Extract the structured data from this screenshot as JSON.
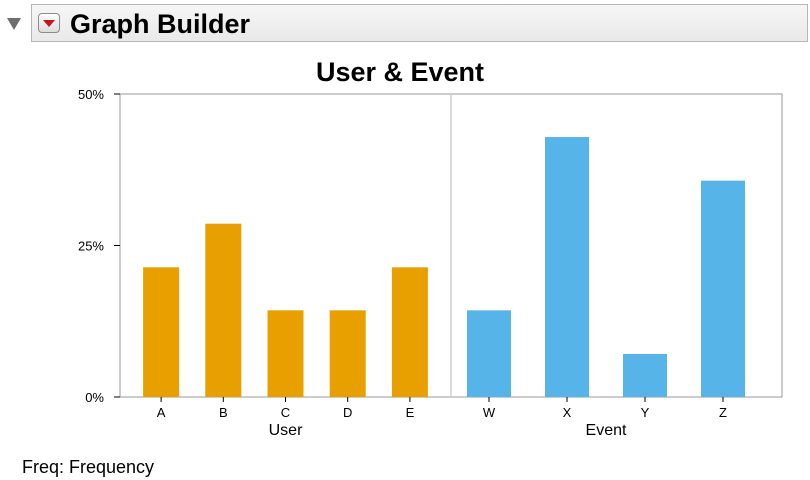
{
  "header": {
    "title": "Graph Builder"
  },
  "footer": {
    "freq_label": "Freq: Frequency"
  },
  "colors": {
    "user": "#e8a000",
    "event": "#56b4e9",
    "separator": "#cfcfcf"
  },
  "chart_data": {
    "type": "bar",
    "title": "User & Event",
    "ylabel": "",
    "ylim": [
      0,
      50
    ],
    "yticks": [
      0,
      25,
      50
    ],
    "ytick_labels": [
      "0%",
      "25%",
      "50%"
    ],
    "grid": false,
    "panels": [
      {
        "xlabel": "User",
        "categories": [
          "A",
          "B",
          "C",
          "D",
          "E"
        ],
        "values": [
          21.4,
          28.6,
          14.3,
          14.3,
          21.4
        ],
        "color": "#e8a000"
      },
      {
        "xlabel": "Event",
        "categories": [
          "W",
          "X",
          "Y",
          "Z"
        ],
        "values": [
          14.3,
          42.9,
          7.1,
          35.7
        ],
        "color": "#56b4e9"
      }
    ]
  }
}
